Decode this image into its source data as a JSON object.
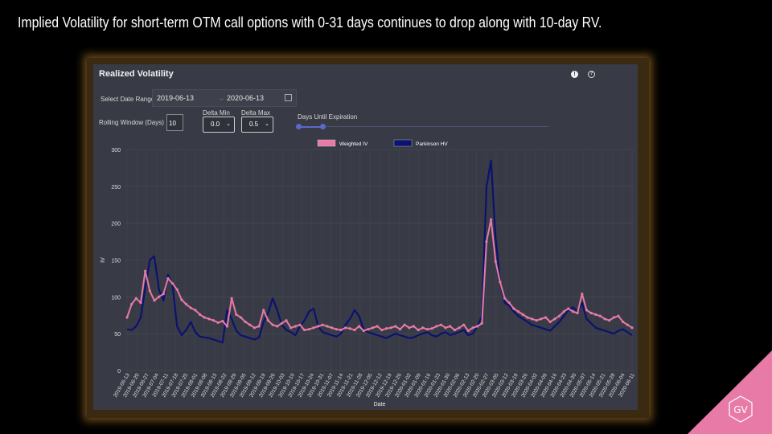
{
  "headline": "Implied Volatility for short-term OTM call options with 0-31 days continues to drop along with 10-day RV.",
  "panel": {
    "title": "Realized Volatility",
    "info_icon": "!",
    "help_icon": "?",
    "date_range_label": "Select Date Range",
    "date_start": "2019-06-13",
    "date_arrow": "→",
    "date_end": "2020-06-13",
    "rolling_window_label": "Rolling Window (Days)",
    "rolling_window_value": "10",
    "delta_min_label": "Delta Min",
    "delta_min_value": "0.0",
    "delta_max_label": "Delta Max",
    "delta_max_value": "0.5",
    "days_label": "Days Until Expiration",
    "days_range": [
      0,
      31
    ]
  },
  "badge": {
    "text": "GV",
    "color": "#e77aa6"
  },
  "chart_data": {
    "type": "line",
    "xlabel": "Date",
    "ylabel": "IV",
    "ylim": [
      0,
      300
    ],
    "yticks": [
      0,
      50,
      100,
      150,
      200,
      250,
      300
    ],
    "grid": true,
    "legend_position": "top-center",
    "x_tick_labels": [
      "2019-06-13",
      "2019-06-20",
      "2019-06-27",
      "2019-07-04",
      "2019-07-11",
      "2019-07-18",
      "2019-07-25",
      "2019-08-01",
      "2019-08-08",
      "2019-08-15",
      "2019-08-22",
      "2019-08-29",
      "2019-09-05",
      "2019-09-12",
      "2019-09-19",
      "2019-09-26",
      "2019-10-03",
      "2019-10-10",
      "2019-10-17",
      "2019-10-24",
      "2019-10-31",
      "2019-11-07",
      "2019-11-14",
      "2019-11-21",
      "2019-11-28",
      "2019-12-05",
      "2019-12-12",
      "2019-12-19",
      "2019-12-26",
      "2020-01-02",
      "2020-01-09",
      "2020-01-16",
      "2020-01-23",
      "2020-01-30",
      "2020-02-06",
      "2020-02-13",
      "2020-02-20",
      "2020-02-27",
      "2020-03-05",
      "2020-03-12",
      "2020-03-19",
      "2020-03-26",
      "2020-04-02",
      "2020-04-09",
      "2020-04-16",
      "2020-04-23",
      "2020-04-30",
      "2020-05-07",
      "2020-05-14",
      "2020-05-21",
      "2020-05-28",
      "2020-06-04",
      "2020-06-11"
    ],
    "series": [
      {
        "name": "Weighted IV",
        "color": "#e77aa6",
        "values": [
          72,
          90,
          98,
          92,
          135,
          108,
          95,
          100,
          104,
          125,
          118,
          110,
          96,
          90,
          85,
          82,
          76,
          72,
          70,
          68,
          65,
          67,
          60,
          98,
          76,
          72,
          66,
          62,
          58,
          60,
          82,
          68,
          62,
          60,
          64,
          68,
          58,
          60,
          62,
          55,
          56,
          58,
          60,
          62,
          60,
          58,
          56,
          55,
          58,
          57,
          55,
          60,
          54,
          56,
          58,
          60,
          55,
          57,
          58,
          60,
          56,
          62,
          58,
          60,
          55,
          58,
          56,
          57,
          60,
          62,
          58,
          60,
          55,
          58,
          62,
          54,
          58,
          60,
          64,
          175,
          205,
          148,
          120,
          98,
          92,
          84,
          80,
          76,
          72,
          70,
          68,
          70,
          72,
          66,
          70,
          74,
          80,
          84,
          80,
          78,
          104,
          82,
          78,
          76,
          74,
          70,
          68,
          72,
          74,
          66,
          62,
          58
        ]
      },
      {
        "name": "Parkinson HV",
        "color": "#0b1270",
        "values": [
          56,
          55,
          60,
          72,
          112,
          150,
          155,
          110,
          95,
          130,
          115,
          60,
          48,
          55,
          66,
          52,
          46,
          45,
          44,
          42,
          40,
          38,
          82,
          70,
          54,
          48,
          46,
          44,
          42,
          45,
          66,
          78,
          98,
          82,
          62,
          55,
          52,
          48,
          60,
          68,
          80,
          84,
          60,
          52,
          50,
          48,
          46,
          50,
          62,
          70,
          82,
          74,
          56,
          52,
          50,
          48,
          46,
          44,
          47,
          50,
          48,
          46,
          44,
          45,
          48,
          50,
          52,
          48,
          46,
          50,
          52,
          48,
          50,
          52,
          55,
          48,
          50,
          60,
          74,
          250,
          285,
          180,
          120,
          92,
          88,
          80,
          74,
          70,
          66,
          62,
          60,
          58,
          56,
          54,
          60,
          66,
          74,
          82,
          86,
          80,
          92,
          70,
          64,
          58,
          56,
          54,
          52,
          50,
          54,
          56,
          52,
          48
        ]
      }
    ]
  }
}
